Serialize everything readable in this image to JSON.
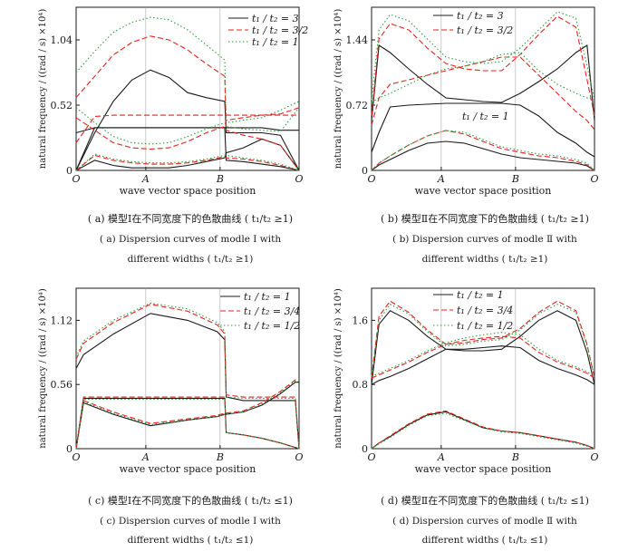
{
  "colors": {
    "series1": "#1a1a1a",
    "series2": "#e8231e",
    "series3": "#2e9e3e",
    "axis": "#1a1a1a"
  },
  "chart_data": [
    {
      "type": "line",
      "panel": "a",
      "xlabel": "wave vector space position",
      "ylabel": "natural frequency / ((rad / s) ×10⁴)",
      "x_ticks": [
        "O",
        "A",
        "B",
        "O"
      ],
      "y_ticks": [
        "0",
        "0.52",
        "1.04"
      ],
      "ylim": [
        0,
        1.3
      ],
      "legend": [
        "t₁ / t₂ = 3",
        "t₁ / t₂ = 3/2",
        "t₁ / t₂ = 1"
      ],
      "caption_cn": "( a)  模型Ⅰ在不同宽度下的色散曲线 ( t₁/t₂ ≥1)",
      "caption_en1": "( a)  Dispersion curves of modle  Ⅰ  with",
      "caption_en2": "different widths ( t₁/t₂ ≥1)",
      "x": [
        0,
        0.25,
        0.5,
        0.75,
        1,
        1.25,
        1.5,
        1.75,
        2,
        2.02,
        2.25,
        2.5,
        2.75,
        3
      ],
      "series": [
        {
          "name": "t₁ / t₂ = 3",
          "values": [
            [
              0,
              0.3,
              0.55,
              0.72,
              0.8,
              0.74,
              0.62,
              0.58,
              0.55,
              0.3,
              0.3,
              0.3,
              0.28,
              0
            ],
            [
              0,
              0.08,
              0.04,
              0.02,
              0.02,
              0.02,
              0.04,
              0.07,
              0.1,
              0.14,
              0.18,
              0.25,
              0.2,
              0
            ],
            [
              0,
              0.34,
              0.34,
              0.34,
              0.34,
              0.34,
              0.34,
              0.34,
              0.34,
              0.08,
              0.07,
              0.05,
              0.03,
              0
            ],
            [
              0.3,
              0.34,
              0.34,
              0.34,
              0.34,
              0.34,
              0.34,
              0.34,
              0.34,
              0.34,
              0.34,
              0.34,
              0.32,
              0.32
            ]
          ]
        },
        {
          "name": "t₁ / t₂ = 3/2",
          "values": [
            [
              0.58,
              0.75,
              0.92,
              1.02,
              1.07,
              1.04,
              0.96,
              0.85,
              0.75,
              0.32,
              0.28,
              0.25,
              0.2,
              0
            ],
            [
              0.42,
              0.32,
              0.22,
              0.18,
              0.17,
              0.18,
              0.23,
              0.3,
              0.35,
              0.4,
              0.42,
              0.44,
              0.45,
              0.5
            ],
            [
              0.22,
              0.43,
              0.44,
              0.44,
              0.44,
              0.44,
              0.44,
              0.44,
              0.44,
              0.44,
              0.44,
              0.44,
              0.44,
              0.44
            ],
            [
              0,
              0.12,
              0.08,
              0.06,
              0.05,
              0.05,
              0.06,
              0.08,
              0.11,
              0.1,
              0.09,
              0.07,
              0.04,
              0
            ]
          ]
        },
        {
          "name": "t₁ / t₂ = 1",
          "values": [
            [
              0.78,
              0.95,
              1.1,
              1.18,
              1.22,
              1.2,
              1.12,
              1.0,
              0.88,
              0.35,
              0.33,
              0.32,
              0.31,
              0.5
            ],
            [
              0.5,
              0.38,
              0.27,
              0.22,
              0.21,
              0.22,
              0.27,
              0.33,
              0.38,
              0.38,
              0.4,
              0.42,
              0.48,
              0.55
            ],
            [
              0,
              0.13,
              0.09,
              0.07,
              0.06,
              0.06,
              0.07,
              0.09,
              0.12,
              0.12,
              0.1,
              0.08,
              0.05,
              0
            ]
          ]
        }
      ]
    },
    {
      "type": "line",
      "panel": "b",
      "xlabel": "wave vector space position",
      "ylabel": "natural frequency / ((rad / s) ×10⁴)",
      "x_ticks": [
        "O",
        "A",
        "B",
        "O"
      ],
      "y_ticks": [
        "0",
        "0.72",
        "1.44"
      ],
      "ylim": [
        0,
        1.8
      ],
      "legend": [
        "t₁ / t₂ = 3",
        "t₁ / t₂ = 3/2"
      ],
      "annotation": "t₁ / t₂ = 1",
      "caption_cn": "( b)  模型Ⅱ在不同宽度下的色散曲线 ( t₁/t₂ ≥1)",
      "caption_en1": "( b)  Dispersion curves of modle  Ⅱ  with",
      "caption_en2": "different widths ( t₁/t₂ ≥1)",
      "x": [
        0,
        0.1,
        0.25,
        0.5,
        0.75,
        1,
        1.25,
        1.5,
        1.75,
        2,
        2.25,
        2.5,
        2.75,
        2.9,
        3
      ],
      "series": [
        {
          "name": "t₁ / t₂ = 3",
          "values": [
            [
              0.55,
              1.38,
              1.3,
              1.12,
              0.95,
              0.8,
              0.78,
              0.76,
              0.75,
              0.85,
              0.98,
              1.12,
              1.3,
              1.38,
              0.55
            ],
            [
              0.2,
              0.42,
              0.7,
              0.72,
              0.73,
              0.74,
              0.74,
              0.74,
              0.74,
              0.72,
              0.6,
              0.42,
              0.3,
              0.2,
              0.15
            ],
            [
              0,
              0.06,
              0.12,
              0.22,
              0.3,
              0.32,
              0.3,
              0.24,
              0.18,
              0.14,
              0.12,
              0.1,
              0.08,
              0.05,
              0
            ]
          ]
        },
        {
          "name": "t₁ / t₂ = 3/2",
          "values": [
            [
              0.6,
              1.45,
              1.62,
              1.55,
              1.35,
              1.18,
              1.12,
              1.1,
              1.1,
              1.28,
              1.5,
              1.7,
              1.58,
              1.0,
              0.6
            ],
            [
              0.5,
              0.8,
              0.95,
              1.0,
              1.05,
              1.1,
              1.15,
              1.2,
              1.25,
              1.25,
              1.05,
              0.85,
              0.65,
              0.55,
              0.45
            ],
            [
              0,
              0.08,
              0.16,
              0.28,
              0.38,
              0.44,
              0.4,
              0.32,
              0.24,
              0.2,
              0.16,
              0.14,
              0.1,
              0.06,
              0
            ]
          ]
        },
        {
          "name": "t₁ / t₂ = 1",
          "values": [
            [
              0.78,
              1.55,
              1.72,
              1.65,
              1.45,
              1.25,
              1.2,
              1.18,
              1.2,
              1.35,
              1.55,
              1.75,
              1.68,
              1.15,
              0.78
            ],
            [
              0.75,
              0.8,
              0.85,
              0.95,
              1.05,
              1.12,
              1.15,
              1.2,
              1.28,
              1.3,
              1.1,
              0.95,
              0.85,
              0.8,
              0.78
            ],
            [
              0,
              0.08,
              0.16,
              0.28,
              0.38,
              0.44,
              0.42,
              0.34,
              0.26,
              0.22,
              0.18,
              0.16,
              0.12,
              0.08,
              0
            ]
          ]
        }
      ]
    },
    {
      "type": "line",
      "panel": "c",
      "xlabel": "wave vector space position",
      "ylabel": "natural frequency / ((rad / s) ×10⁴)",
      "x_ticks": [
        "O",
        "A",
        "B",
        "O"
      ],
      "y_ticks": [
        "0",
        "0.56",
        "1.12"
      ],
      "ylim": [
        0,
        1.4
      ],
      "legend": [
        "t₁ / t₂ = 1",
        "t₁ / t₂ = 3/4",
        "t₁ / t₂ = 1/2"
      ],
      "caption_cn": "( c)  模型Ⅰ在不同宽度下的色散曲线 ( t₁/t₂ ≤1)",
      "caption_en1": "( c)  Dispersion curves of modle  Ⅰ  with",
      "caption_en2": "different widths ( t₁/t₂ ≤1)",
      "x": [
        0,
        0.1,
        0.5,
        1,
        1.5,
        1.9,
        2,
        2.02,
        2.25,
        2.5,
        2.75,
        2.95,
        3
      ],
      "series": [
        {
          "name": "t₁ / t₂ = 1",
          "values": [
            [
              0.7,
              0.82,
              1.0,
              1.18,
              1.12,
              1.02,
              0.95,
              0.45,
              0.42,
              0.42,
              0.42,
              0.42,
              0.0
            ],
            [
              0.0,
              0.4,
              0.3,
              0.2,
              0.25,
              0.28,
              0.3,
              0.3,
              0.32,
              0.38,
              0.48,
              0.58,
              0.58
            ],
            [
              0.0,
              0.44,
              0.44,
              0.44,
              0.44,
              0.44,
              0.44,
              0.14,
              0.12,
              0.09,
              0.05,
              0.01,
              0.0
            ]
          ]
        },
        {
          "name": "t₁ / t₂ = 3/4",
          "values": [
            [
              0.78,
              0.92,
              1.1,
              1.26,
              1.2,
              1.08,
              1.0,
              0.47,
              0.45,
              0.45,
              0.45,
              0.45,
              0.0
            ],
            [
              0.0,
              0.42,
              0.32,
              0.22,
              0.26,
              0.29,
              0.31,
              0.31,
              0.33,
              0.4,
              0.5,
              0.6,
              0.6
            ],
            [
              0.0,
              0.45,
              0.45,
              0.45,
              0.45,
              0.45,
              0.45,
              0.14,
              0.12,
              0.09,
              0.05,
              0.01,
              0.0
            ]
          ]
        },
        {
          "name": "t₁ / t₂ = 1/2",
          "values": [
            [
              0.8,
              0.94,
              1.12,
              1.27,
              1.22,
              1.1,
              1.02,
              0.45,
              0.44,
              0.44,
              0.44,
              0.44,
              0.0
            ],
            [
              0.0,
              0.41,
              0.31,
              0.21,
              0.25,
              0.28,
              0.3,
              0.3,
              0.32,
              0.39,
              0.49,
              0.59,
              0.59
            ],
            [
              0.0,
              0.43,
              0.43,
              0.43,
              0.43,
              0.43,
              0.43,
              0.14,
              0.12,
              0.09,
              0.05,
              0.01,
              0.0
            ]
          ]
        }
      ]
    },
    {
      "type": "line",
      "panel": "d",
      "xlabel": "wave vector space position",
      "ylabel": "natural frequency / ((rad / s) ×10⁴)",
      "x_ticks": [
        "O",
        "A",
        "B",
        "O"
      ],
      "y_ticks": [
        "0",
        "0.8",
        "1.6"
      ],
      "ylim": [
        0,
        2.0
      ],
      "legend": [
        "t₁ / t₂ = 1",
        "t₁ / t₂ = 3/4",
        "t₁ / t₂ = 1/2"
      ],
      "caption_cn": "( d)  模型Ⅱ在不同宽度下的色散曲线 ( t₁/t₂ ≤1)",
      "caption_en1": "( d)  Dispersion curves of modle  Ⅱ  with",
      "caption_en2": "different widths ( t₁/t₂ ≤1)",
      "x": [
        0,
        0.1,
        0.25,
        0.5,
        0.75,
        1,
        1.25,
        1.5,
        1.75,
        2,
        2.25,
        2.5,
        2.75,
        2.9,
        3
      ],
      "series": [
        {
          "name": "t₁ / t₂ = 1",
          "values": [
            [
              0.8,
              1.55,
              1.72,
              1.6,
              1.4,
              1.24,
              1.22,
              1.22,
              1.24,
              1.4,
              1.6,
              1.72,
              1.6,
              1.2,
              0.8
            ],
            [
              0.8,
              0.85,
              0.9,
              1.0,
              1.12,
              1.24,
              1.24,
              1.26,
              1.28,
              1.26,
              1.1,
              1.0,
              0.92,
              0.86,
              0.8
            ],
            [
              0.0,
              0.07,
              0.15,
              0.3,
              0.42,
              0.46,
              0.36,
              0.26,
              0.22,
              0.2,
              0.16,
              0.12,
              0.08,
              0.04,
              0.0
            ]
          ]
        },
        {
          "name": "t₁ / t₂ = 3/4",
          "values": [
            [
              0.88,
              1.65,
              1.84,
              1.7,
              1.48,
              1.3,
              1.32,
              1.36,
              1.38,
              1.5,
              1.7,
              1.84,
              1.72,
              1.3,
              0.88
            ],
            [
              0.88,
              0.92,
              0.98,
              1.08,
              1.2,
              1.3,
              1.35,
              1.38,
              1.4,
              1.38,
              1.2,
              1.08,
              1.0,
              0.94,
              0.88
            ],
            [
              0.0,
              0.07,
              0.16,
              0.31,
              0.43,
              0.47,
              0.37,
              0.27,
              0.22,
              0.2,
              0.16,
              0.12,
              0.08,
              0.04,
              0.0
            ]
          ]
        },
        {
          "name": "t₁ / t₂ = 1/2",
          "values": [
            [
              0.9,
              1.6,
              1.8,
              1.68,
              1.46,
              1.28,
              1.3,
              1.34,
              1.36,
              1.48,
              1.68,
              1.8,
              1.7,
              1.28,
              0.9
            ],
            [
              0.9,
              0.94,
              1.0,
              1.1,
              1.22,
              1.32,
              1.38,
              1.42,
              1.45,
              1.42,
              1.24,
              1.1,
              1.02,
              0.96,
              0.9
            ],
            [
              0.0,
              0.06,
              0.14,
              0.29,
              0.41,
              0.44,
              0.35,
              0.26,
              0.21,
              0.19,
              0.15,
              0.11,
              0.07,
              0.03,
              0.0
            ]
          ]
        }
      ]
    }
  ]
}
